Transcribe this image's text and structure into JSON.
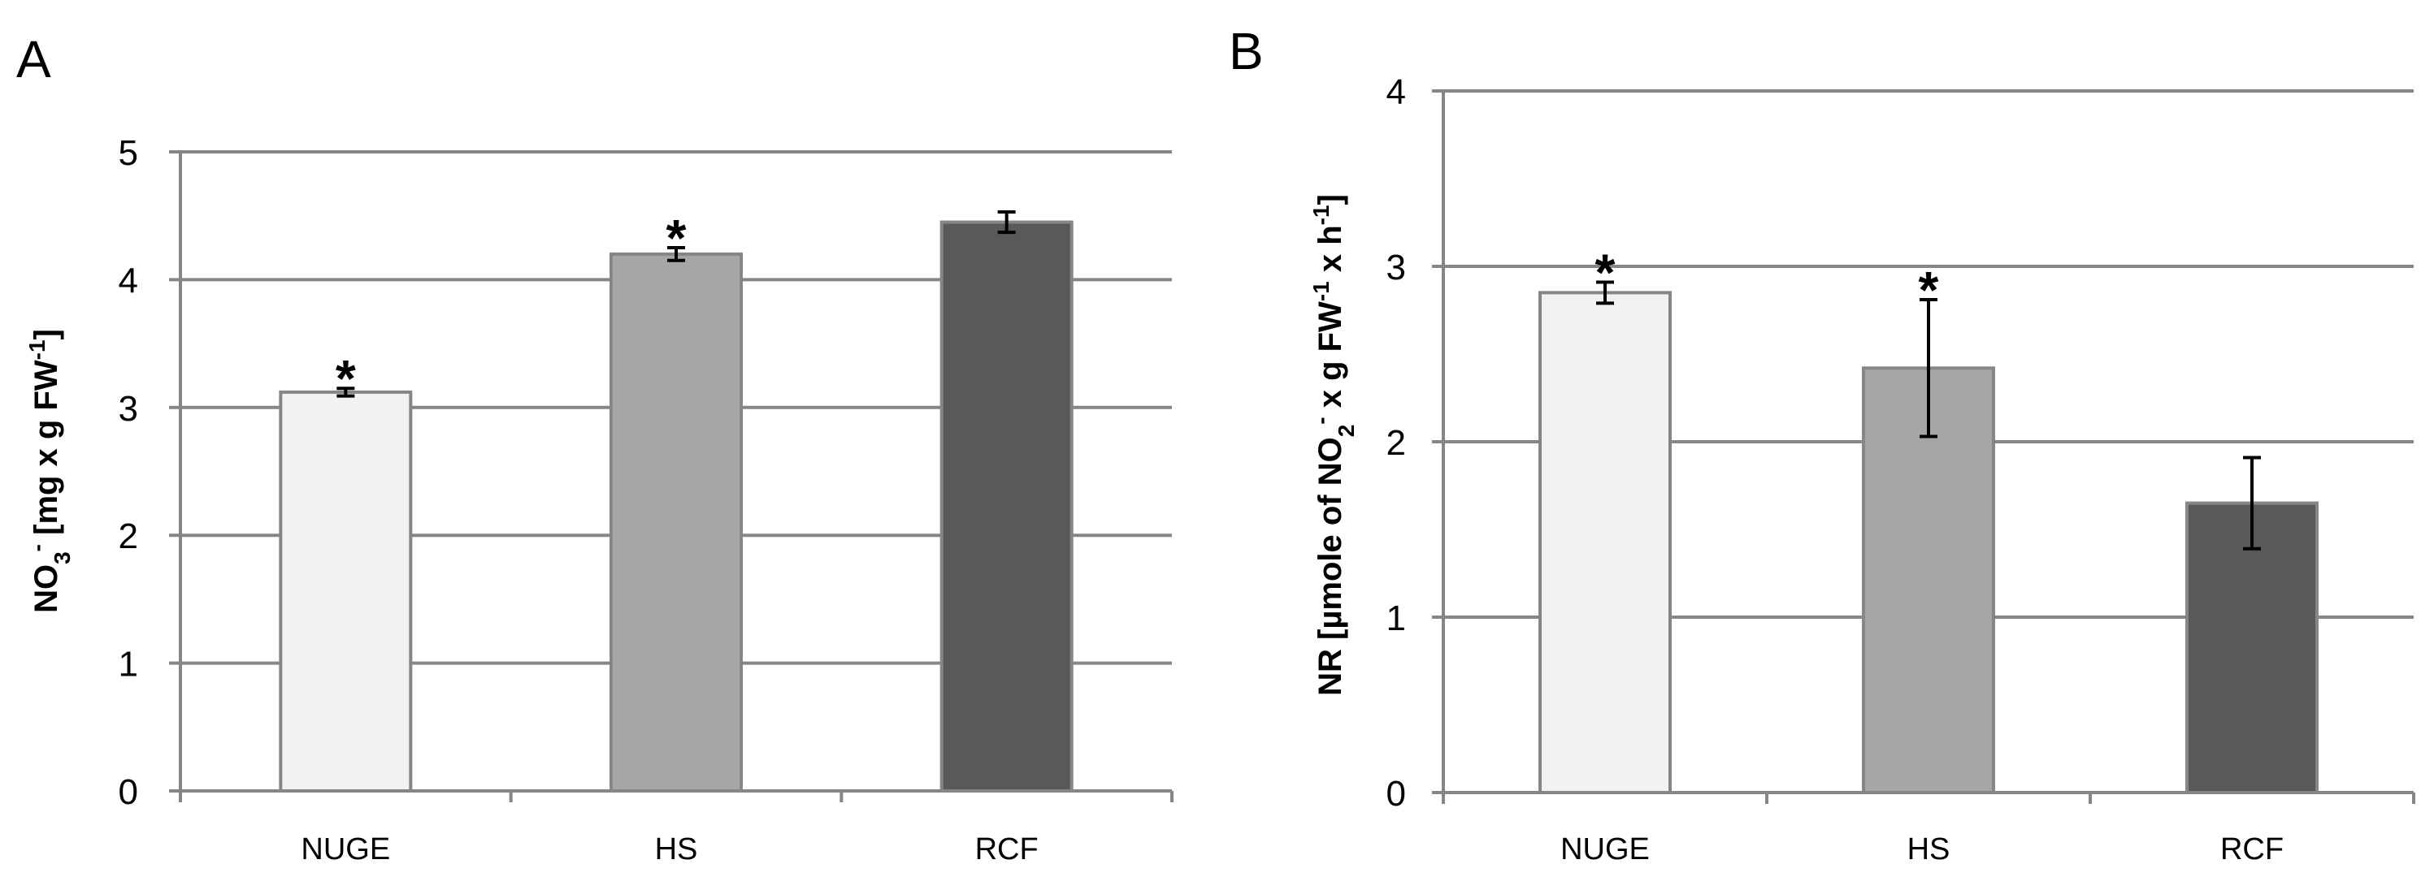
{
  "chart_data": [
    {
      "panel_label": "A",
      "type": "bar",
      "categories": [
        "NUGE",
        "HS",
        "RCF"
      ],
      "values": [
        3.12,
        4.2,
        4.45
      ],
      "errors": [
        0.03,
        0.05,
        0.08
      ],
      "significance": [
        "*",
        "*",
        ""
      ],
      "colors": [
        "#f2f2f2",
        "#a6a6a6",
        "#595959"
      ],
      "ylabel": {
        "parts": [
          {
            "text": "NO",
            "shift": "none"
          },
          {
            "text": "3",
            "shift": "sub"
          },
          {
            "text": "-",
            "shift": "super"
          },
          {
            "text": " [mg x g FW",
            "shift": "none"
          },
          {
            "text": "-1",
            "shift": "super"
          },
          {
            "text": "]",
            "shift": "none"
          }
        ]
      },
      "ylim": [
        0,
        5
      ],
      "yticks": [
        "0",
        "1",
        "2",
        "3",
        "4",
        "5"
      ],
      "grid": true
    },
    {
      "panel_label": "B",
      "type": "bar",
      "categories": [
        "NUGE",
        "HS",
        "RCF"
      ],
      "values": [
        2.85,
        2.42,
        1.65
      ],
      "errors": [
        0.06,
        0.39,
        0.26
      ],
      "significance": [
        "*",
        "*",
        ""
      ],
      "colors": [
        "#f2f2f2",
        "#a6a6a6",
        "#595959"
      ],
      "ylabel": {
        "parts": [
          {
            "text": "NR [µmole of NO",
            "shift": "none"
          },
          {
            "text": "2",
            "shift": "sub"
          },
          {
            "text": "-",
            "shift": "super"
          },
          {
            "text": " x g FW",
            "shift": "none"
          },
          {
            "text": "-1",
            "shift": "super"
          },
          {
            "text": " x h",
            "shift": "none"
          },
          {
            "text": "-1",
            "shift": "super"
          },
          {
            "text": "]",
            "shift": "none"
          }
        ]
      },
      "ylim": [
        0,
        4
      ],
      "yticks": [
        "0",
        "1",
        "2",
        "3",
        "4"
      ],
      "grid": true
    }
  ]
}
